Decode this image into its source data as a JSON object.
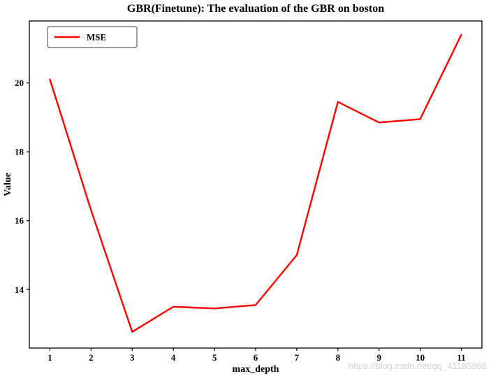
{
  "watermark": "https://blog.csdn.net/qq_41185868",
  "chart_data": {
    "type": "line",
    "title": "GBR(Finetune): The evaluation of the GBR on boston",
    "xlabel": "max_depth",
    "ylabel": "Value",
    "x": [
      1,
      2,
      3,
      4,
      5,
      6,
      7,
      8,
      9,
      10,
      11
    ],
    "series": [
      {
        "name": "MSE",
        "color": "#ff0000",
        "values": [
          20.1,
          16.3,
          12.77,
          13.5,
          13.45,
          13.55,
          15.0,
          19.45,
          18.85,
          18.95,
          21.4
        ]
      }
    ],
    "xticks": [
      1,
      2,
      3,
      4,
      5,
      6,
      7,
      8,
      9,
      10,
      11
    ],
    "yticks": [
      14,
      16,
      18,
      20
    ],
    "xlim": [
      0.5,
      11.5
    ],
    "ylim": [
      12.3,
      21.8
    ],
    "grid": false,
    "legend_position": "upper-left",
    "axis_color": "#000000",
    "background": "#ffffff"
  }
}
